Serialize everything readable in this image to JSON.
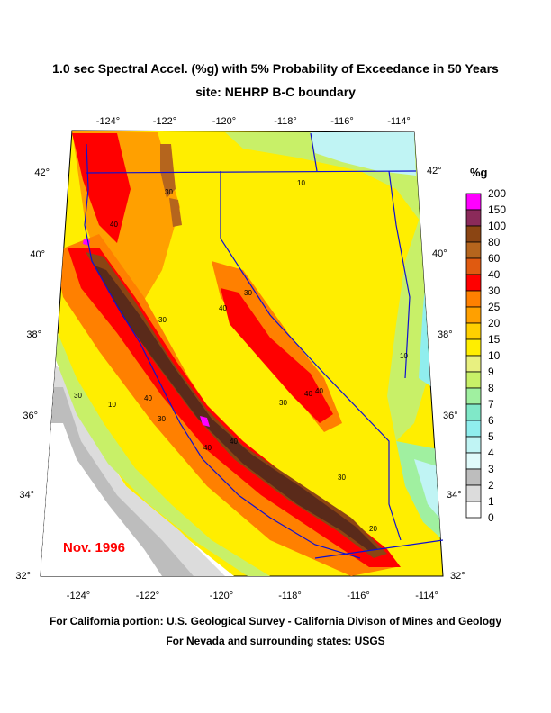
{
  "map": {
    "title": "1.0 sec Spectral Accel. (%g) with 5% Probability of Exceedance in 50 Years",
    "subtitle": "site: NEHRP B-C boundary",
    "date_stamp": "Nov. 1996",
    "credits": [
      "For California portion: U.S. Geological Survey - California Divison of Mines and Geology",
      "For Nevada and surrounding states: USGS"
    ],
    "longitude_ticks_top": [
      "-124°",
      "-122°",
      "-120°",
      "-118°",
      "-116°",
      "-114°"
    ],
    "longitude_ticks_bottom": [
      "-124°",
      "-122°",
      "-120°",
      "-118°",
      "-116°",
      "-114°"
    ],
    "latitude_ticks_left": [
      "42°",
      "40°",
      "38°",
      "36°",
      "34°",
      "32°"
    ],
    "latitude_ticks_right": [
      "42°",
      "40°",
      "38°",
      "36°",
      "34°",
      "32°"
    ],
    "contour_labels": [
      "30",
      "40",
      "30",
      "40",
      "10",
      "10",
      "30",
      "40",
      "30",
      "40",
      "40",
      "30",
      "40",
      "40",
      "30",
      "10",
      "30",
      "20"
    ]
  },
  "legend": {
    "unit": "%g",
    "levels": [
      "200",
      "150",
      "100",
      "80",
      "60",
      "40",
      "30",
      "25",
      "20",
      "15",
      "10",
      "9",
      "8",
      "7",
      "6",
      "5",
      "4",
      "3",
      "2",
      "1",
      "0"
    ],
    "colors": [
      "#ff00ff",
      "#8b2a5a",
      "#8b4513",
      "#b5651d",
      "#e05a10",
      "#ff0000",
      "#ff8000",
      "#ffa000",
      "#ffd000",
      "#ffee00",
      "#e8f080",
      "#c8f068",
      "#a0f0a0",
      "#80e8c8",
      "#90eeee",
      "#c0f4f4",
      "#e0fafa",
      "#bdbdbd",
      "#dcdcdc",
      "#ffffff"
    ]
  }
}
